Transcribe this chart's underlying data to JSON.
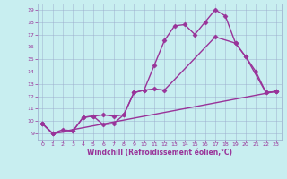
{
  "bg_color": "#c8eef0",
  "line_color": "#993399",
  "grid_color": "#99aacc",
  "xlabel": "Windchill (Refroidissement éolien,°C)",
  "xlabel_color": "#993399",
  "ylabel_color": "#993399",
  "tick_color": "#993399",
  "xlim": [
    -0.5,
    23.5
  ],
  "ylim": [
    8.5,
    19.5
  ],
  "xtick_labels": [
    "0",
    "1",
    "2",
    "3",
    "4",
    "5",
    "6",
    "7",
    "8",
    "9",
    "10",
    "11",
    "12",
    "13",
    "14",
    "15",
    "16",
    "17",
    "18",
    "19",
    "20",
    "21",
    "22",
    "23"
  ],
  "yticks": [
    9,
    10,
    11,
    12,
    13,
    14,
    15,
    16,
    17,
    18,
    19
  ],
  "curve1_x": [
    0,
    1,
    2,
    3,
    4,
    5,
    6,
    7,
    8,
    9,
    10,
    11,
    12,
    13,
    14,
    15,
    16,
    17,
    18,
    19,
    20,
    21,
    22,
    23
  ],
  "curve1_y": [
    9.8,
    9.0,
    9.3,
    9.2,
    10.3,
    10.4,
    9.7,
    9.8,
    10.5,
    12.3,
    12.5,
    14.5,
    16.5,
    17.7,
    17.8,
    17.0,
    18.0,
    19.0,
    18.5,
    16.3,
    15.2,
    14.0,
    12.3,
    12.4
  ],
  "curve2_x": [
    0,
    1,
    3,
    4,
    5,
    6,
    7,
    8,
    9,
    10,
    11,
    12,
    17,
    19,
    20,
    22,
    23
  ],
  "curve2_y": [
    9.8,
    9.0,
    9.2,
    10.3,
    10.4,
    10.5,
    10.4,
    10.5,
    12.3,
    12.5,
    12.6,
    12.5,
    16.8,
    16.3,
    15.2,
    12.3,
    12.4
  ],
  "curve3_x": [
    0,
    1,
    23
  ],
  "curve3_y": [
    9.8,
    9.0,
    12.4
  ],
  "marker": "D",
  "markersize": 2.5,
  "linewidth": 1.0
}
